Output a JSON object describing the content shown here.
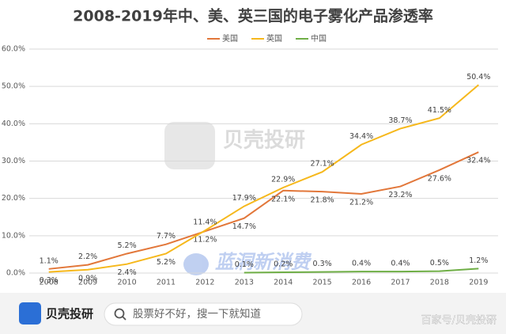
{
  "chart_data": {
    "type": "line",
    "title": "2008-2019年中、美、英三国的电子雾化产品渗透率",
    "categories": [
      "2008",
      "2009",
      "2010",
      "2011",
      "2012",
      "2013",
      "2014",
      "2015",
      "2016",
      "2017",
      "2018",
      "2019"
    ],
    "series": [
      {
        "name": "美国",
        "color": "#e2773a",
        "values": [
          1.1,
          2.2,
          5.2,
          7.7,
          11.2,
          14.7,
          22.1,
          21.8,
          21.2,
          23.2,
          27.6,
          32.4
        ],
        "value_labels": [
          "1.1%",
          "2.2%",
          "5.2%",
          "7.7%",
          "11.2%",
          "14.7%",
          "22.1%",
          "21.8%",
          "21.2%",
          "23.2%",
          "27.6%",
          "32.4%"
        ]
      },
      {
        "name": "英国",
        "color": "#f6b81c",
        "values": [
          0.3,
          0.9,
          2.4,
          5.2,
          11.4,
          17.9,
          22.9,
          27.1,
          34.4,
          38.7,
          41.5,
          50.4
        ],
        "value_labels": [
          "0.3%",
          "0.9%",
          "2.4%",
          "5.2%",
          "11.4%",
          "17.9%",
          "22.9%",
          "27.1%",
          "34.4%",
          "38.7%",
          "41.5%",
          "50.4%"
        ]
      },
      {
        "name": "中国",
        "color": "#6fae46",
        "values": [
          null,
          null,
          null,
          null,
          null,
          0.1,
          0.2,
          0.3,
          0.4,
          0.4,
          0.5,
          1.2
        ],
        "value_labels": [
          null,
          null,
          null,
          null,
          null,
          "0.1%",
          "0.2%",
          "0.3%",
          "0.4%",
          "0.4%",
          "0.5%",
          "1.2%"
        ]
      }
    ],
    "ylim": [
      0,
      60
    ],
    "yticks": [
      {
        "value": 0,
        "label": "0.0%"
      },
      {
        "value": 10,
        "label": "10.0%"
      },
      {
        "value": 20,
        "label": "20.0%"
      },
      {
        "value": 30,
        "label": "30.0%"
      },
      {
        "value": 40,
        "label": "40.0%"
      },
      {
        "value": 50,
        "label": "50.0%"
      },
      {
        "value": 60,
        "label": "60.0%"
      }
    ],
    "grid": true,
    "legend": "top"
  },
  "watermarks": [
    "贝壳投研",
    "蓝洞新消费"
  ],
  "footer": {
    "brand": "贝壳投研",
    "search_placeholder": "股票好不好，搜一下就知道",
    "source": "百家号/贝壳投研"
  }
}
